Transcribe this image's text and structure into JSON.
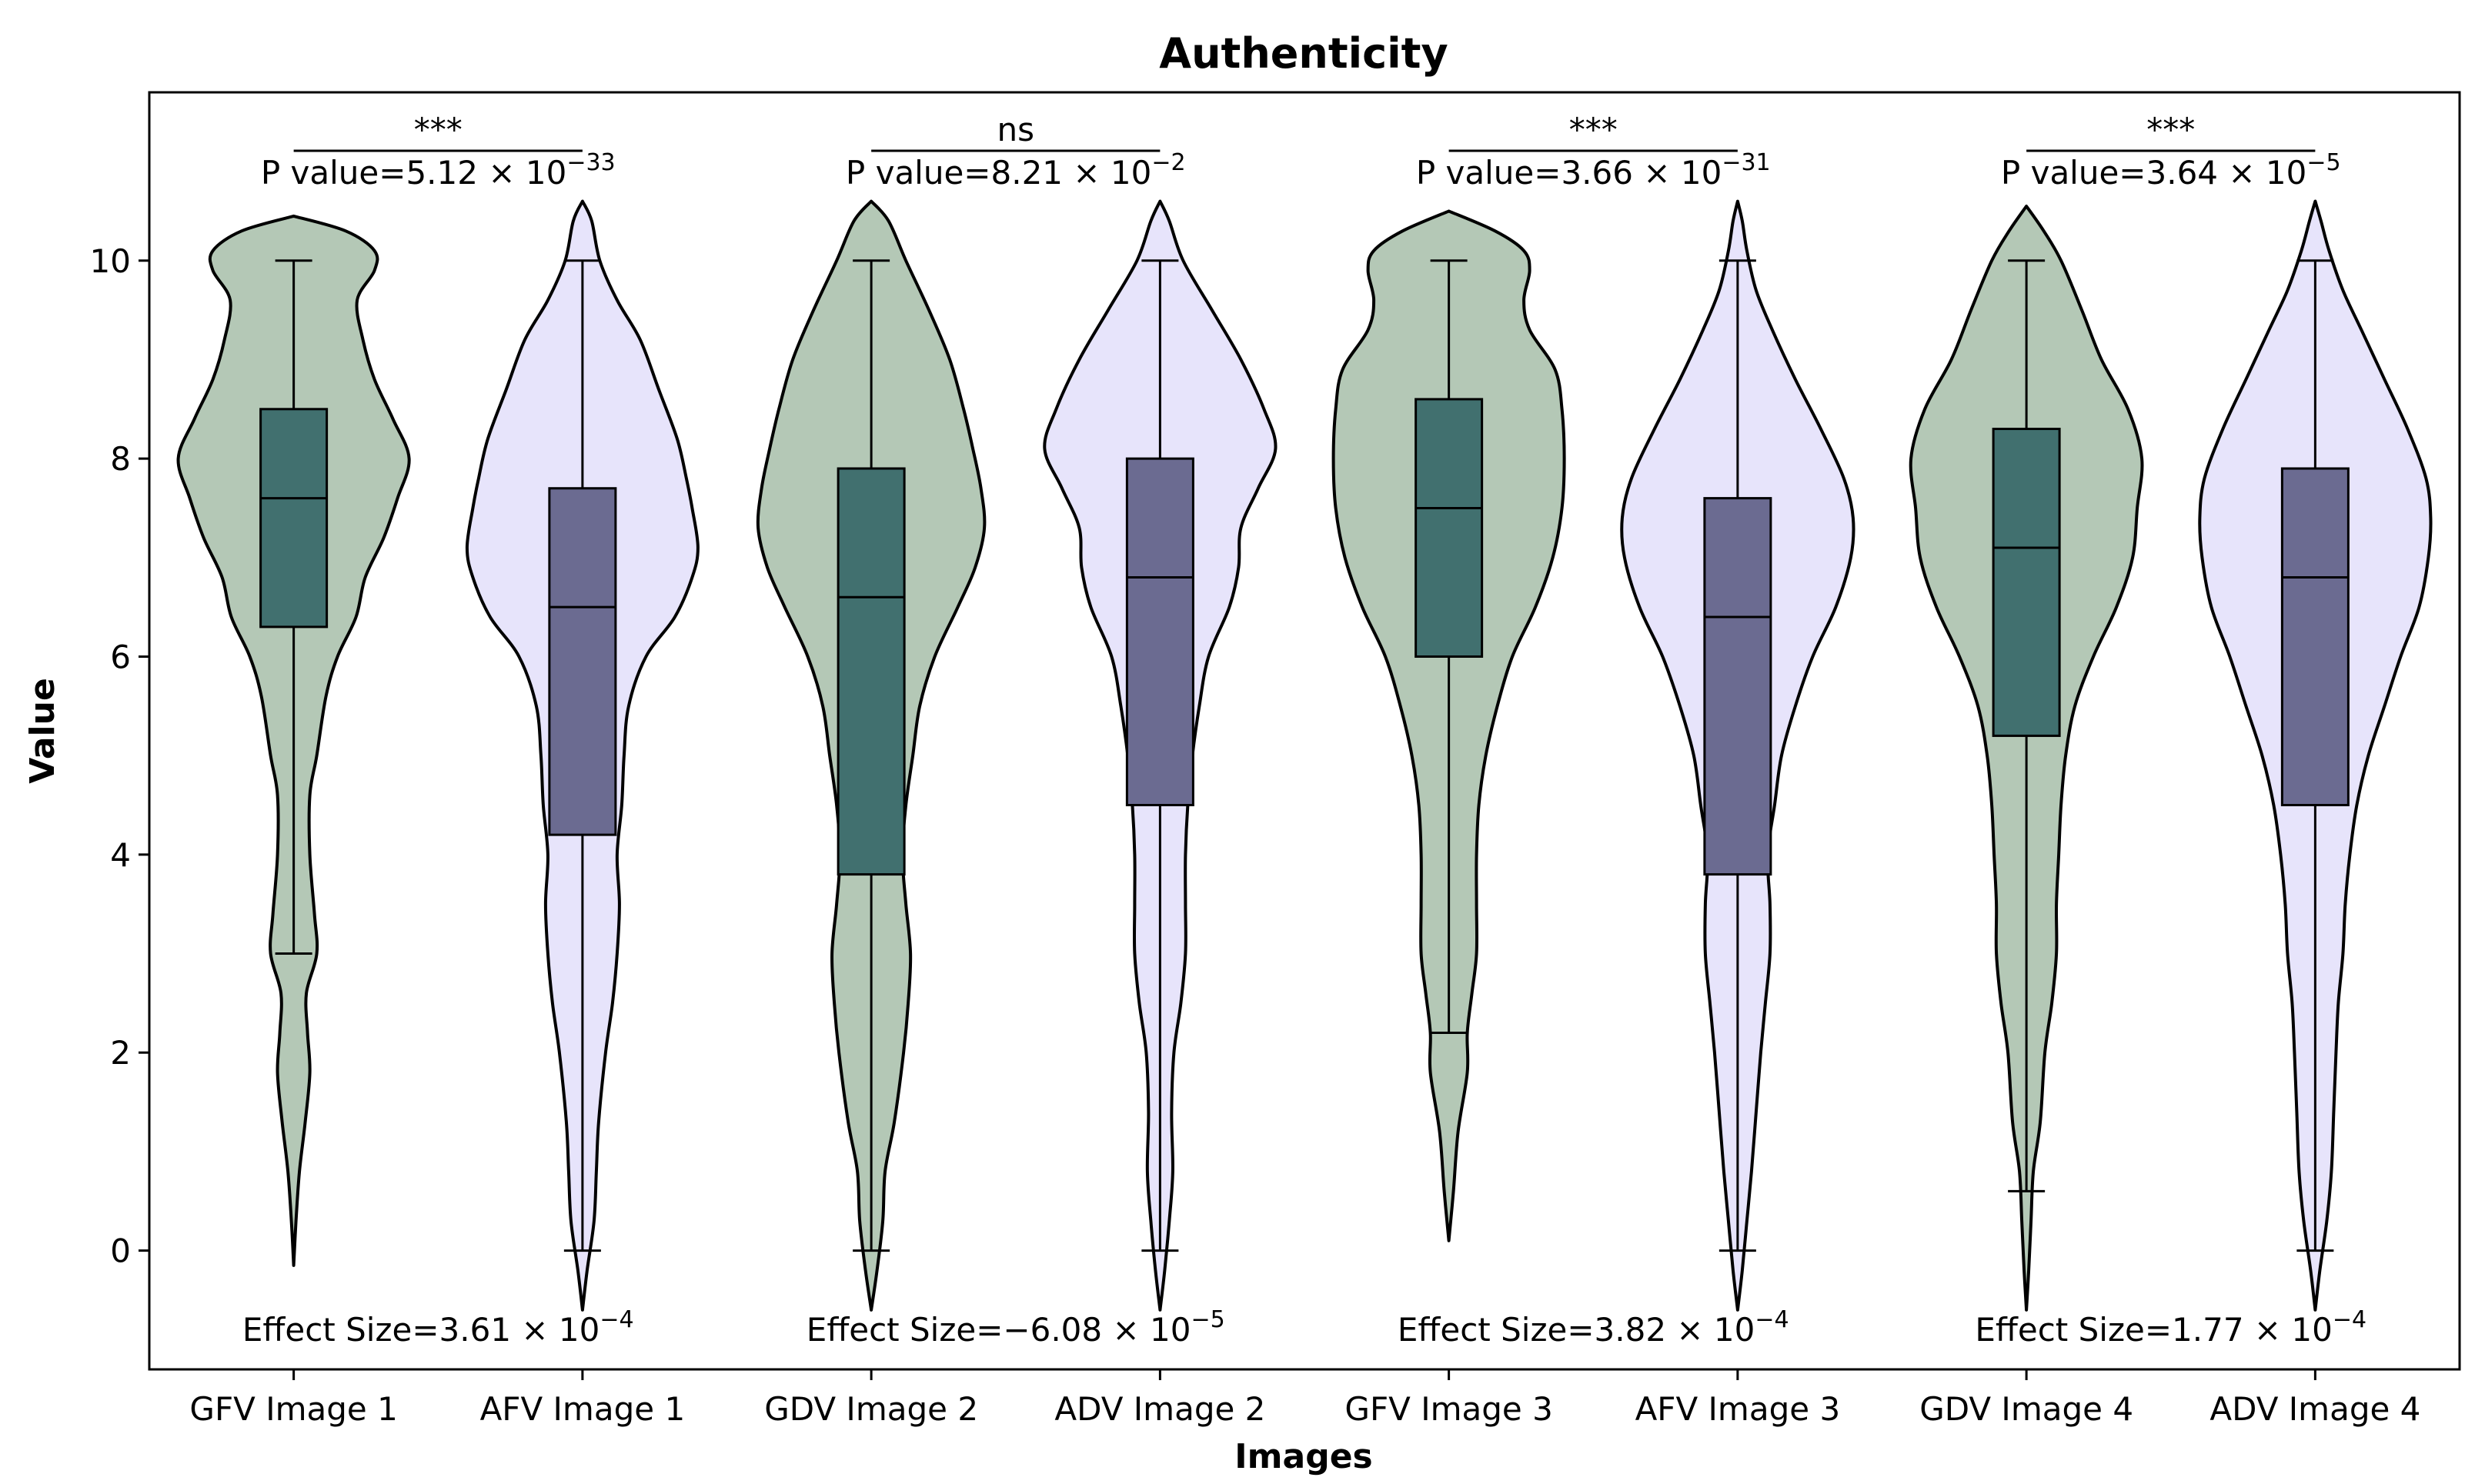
{
  "chart_data": {
    "type": "violin",
    "title": "Authenticity",
    "xlabel": "Images",
    "ylabel": "Value",
    "ylim": [
      -1.2,
      11.7
    ],
    "yticks": [
      0,
      2,
      4,
      6,
      8,
      10
    ],
    "categories": [
      "GFV Image 1",
      "AFV Image 1",
      "GDV Image 2",
      "ADV Image 2",
      "GFV Image 3",
      "AFV Image 3",
      "GDV Image 4",
      "ADV Image 4"
    ],
    "colors": {
      "violin_green": "#b4c8b6",
      "violin_lavender": "#e7e4fb",
      "box_green": "#41706f",
      "box_lavender": "#6b6b91",
      "line": "#000000"
    },
    "boxes": [
      {
        "category": "GFV Image 1",
        "whisker_low": 3.0,
        "q1": 6.3,
        "median": 7.6,
        "q3": 8.5,
        "whisker_high": 10.0,
        "color": "green"
      },
      {
        "category": "AFV Image 1",
        "whisker_low": 0.0,
        "q1": 4.2,
        "median": 6.5,
        "q3": 7.7,
        "whisker_high": 10.0,
        "color": "lavender"
      },
      {
        "category": "GDV Image 2",
        "whisker_low": 0.0,
        "q1": 3.8,
        "median": 6.6,
        "q3": 7.9,
        "whisker_high": 10.0,
        "color": "green"
      },
      {
        "category": "ADV Image 2",
        "whisker_low": 0.0,
        "q1": 4.5,
        "median": 6.8,
        "q3": 8.0,
        "whisker_high": 10.0,
        "color": "lavender"
      },
      {
        "category": "GFV Image 3",
        "whisker_low": 2.2,
        "q1": 6.0,
        "median": 7.5,
        "q3": 8.6,
        "whisker_high": 10.0,
        "color": "green"
      },
      {
        "category": "AFV Image 3",
        "whisker_low": 0.0,
        "q1": 3.8,
        "median": 6.4,
        "q3": 7.6,
        "whisker_high": 10.0,
        "color": "lavender"
      },
      {
        "category": "GDV Image 4",
        "whisker_low": 0.6,
        "q1": 5.2,
        "median": 7.1,
        "q3": 8.3,
        "whisker_high": 10.0,
        "color": "green"
      },
      {
        "category": "ADV Image 4",
        "whisker_low": 0.0,
        "q1": 4.5,
        "median": 6.8,
        "q3": 7.9,
        "whisker_high": 10.0,
        "color": "lavender"
      }
    ],
    "violins": [
      {
        "category": "GFV Image 1",
        "range": [
          -0.15,
          10.45
        ],
        "profile": [
          [
            -0.15,
            0.0
          ],
          [
            0.3,
            0.02
          ],
          [
            0.8,
            0.05
          ],
          [
            1.3,
            0.1
          ],
          [
            1.8,
            0.14
          ],
          [
            2.2,
            0.12
          ],
          [
            2.6,
            0.11
          ],
          [
            3.0,
            0.2
          ],
          [
            3.4,
            0.18
          ],
          [
            4.0,
            0.14
          ],
          [
            4.6,
            0.14
          ],
          [
            5.0,
            0.2
          ],
          [
            5.6,
            0.28
          ],
          [
            6.0,
            0.38
          ],
          [
            6.4,
            0.54
          ],
          [
            6.8,
            0.62
          ],
          [
            7.2,
            0.78
          ],
          [
            7.6,
            0.9
          ],
          [
            8.0,
            1.0
          ],
          [
            8.4,
            0.86
          ],
          [
            8.8,
            0.7
          ],
          [
            9.2,
            0.6
          ],
          [
            9.6,
            0.55
          ],
          [
            9.9,
            0.7
          ],
          [
            10.1,
            0.7
          ],
          [
            10.3,
            0.45
          ],
          [
            10.45,
            0.0
          ]
        ]
      },
      {
        "category": "AFV Image 1",
        "range": [
          -0.6,
          10.6
        ],
        "profile": [
          [
            -0.6,
            0.0
          ],
          [
            -0.2,
            0.04
          ],
          [
            0.3,
            0.1
          ],
          [
            0.8,
            0.12
          ],
          [
            1.3,
            0.14
          ],
          [
            2.0,
            0.2
          ],
          [
            2.5,
            0.26
          ],
          [
            3.0,
            0.3
          ],
          [
            3.5,
            0.32
          ],
          [
            4.0,
            0.3
          ],
          [
            4.5,
            0.34
          ],
          [
            5.0,
            0.36
          ],
          [
            5.5,
            0.4
          ],
          [
            6.0,
            0.55
          ],
          [
            6.4,
            0.8
          ],
          [
            6.8,
            0.95
          ],
          [
            7.1,
            1.0
          ],
          [
            7.5,
            0.95
          ],
          [
            7.8,
            0.9
          ],
          [
            8.2,
            0.82
          ],
          [
            8.7,
            0.66
          ],
          [
            9.2,
            0.5
          ],
          [
            9.6,
            0.3
          ],
          [
            10.0,
            0.15
          ],
          [
            10.4,
            0.08
          ],
          [
            10.6,
            0.0
          ]
        ]
      },
      {
        "category": "GDV Image 2",
        "range": [
          -0.6,
          10.6
        ],
        "profile": [
          [
            -0.6,
            0.0
          ],
          [
            -0.2,
            0.05
          ],
          [
            0.3,
            0.1
          ],
          [
            0.8,
            0.12
          ],
          [
            1.3,
            0.2
          ],
          [
            2.0,
            0.28
          ],
          [
            2.5,
            0.32
          ],
          [
            3.0,
            0.34
          ],
          [
            3.5,
            0.3
          ],
          [
            4.0,
            0.27
          ],
          [
            4.5,
            0.3
          ],
          [
            5.0,
            0.36
          ],
          [
            5.5,
            0.42
          ],
          [
            6.0,
            0.55
          ],
          [
            6.5,
            0.75
          ],
          [
            6.9,
            0.9
          ],
          [
            7.3,
            0.98
          ],
          [
            7.7,
            0.95
          ],
          [
            8.1,
            0.88
          ],
          [
            8.5,
            0.8
          ],
          [
            9.0,
            0.68
          ],
          [
            9.5,
            0.5
          ],
          [
            10.0,
            0.3
          ],
          [
            10.4,
            0.15
          ],
          [
            10.6,
            0.0
          ]
        ]
      },
      {
        "category": "ADV Image 2",
        "range": [
          -0.6,
          10.6
        ],
        "profile": [
          [
            -0.6,
            0.0
          ],
          [
            -0.2,
            0.04
          ],
          [
            0.3,
            0.08
          ],
          [
            0.8,
            0.11
          ],
          [
            1.4,
            0.1
          ],
          [
            2.0,
            0.12
          ],
          [
            2.5,
            0.18
          ],
          [
            3.0,
            0.22
          ],
          [
            3.5,
            0.22
          ],
          [
            4.0,
            0.22
          ],
          [
            4.5,
            0.24
          ],
          [
            5.0,
            0.28
          ],
          [
            5.5,
            0.34
          ],
          [
            6.0,
            0.42
          ],
          [
            6.5,
            0.6
          ],
          [
            6.9,
            0.68
          ],
          [
            7.3,
            0.7
          ],
          [
            7.7,
            0.85
          ],
          [
            8.1,
            1.0
          ],
          [
            8.5,
            0.9
          ],
          [
            9.0,
            0.7
          ],
          [
            9.5,
            0.45
          ],
          [
            10.0,
            0.2
          ],
          [
            10.4,
            0.08
          ],
          [
            10.6,
            0.0
          ]
        ]
      },
      {
        "category": "GFV Image 3",
        "range": [
          0.1,
          10.5
        ],
        "profile": [
          [
            0.1,
            0.0
          ],
          [
            0.6,
            0.04
          ],
          [
            1.2,
            0.08
          ],
          [
            1.8,
            0.16
          ],
          [
            2.2,
            0.16
          ],
          [
            2.6,
            0.2
          ],
          [
            3.0,
            0.24
          ],
          [
            3.5,
            0.24
          ],
          [
            4.0,
            0.24
          ],
          [
            4.5,
            0.26
          ],
          [
            5.0,
            0.32
          ],
          [
            5.5,
            0.42
          ],
          [
            6.0,
            0.55
          ],
          [
            6.5,
            0.75
          ],
          [
            7.0,
            0.9
          ],
          [
            7.5,
            0.98
          ],
          [
            8.0,
            1.0
          ],
          [
            8.5,
            0.98
          ],
          [
            8.9,
            0.92
          ],
          [
            9.3,
            0.7
          ],
          [
            9.6,
            0.65
          ],
          [
            9.9,
            0.7
          ],
          [
            10.1,
            0.65
          ],
          [
            10.3,
            0.4
          ],
          [
            10.5,
            0.0
          ]
        ]
      },
      {
        "category": "AFV Image 3",
        "range": [
          -0.6,
          10.6
        ],
        "profile": [
          [
            -0.6,
            0.0
          ],
          [
            -0.2,
            0.04
          ],
          [
            0.3,
            0.08
          ],
          [
            0.8,
            0.12
          ],
          [
            1.4,
            0.16
          ],
          [
            2.0,
            0.2
          ],
          [
            2.5,
            0.24
          ],
          [
            3.0,
            0.28
          ],
          [
            3.5,
            0.28
          ],
          [
            4.0,
            0.26
          ],
          [
            4.5,
            0.32
          ],
          [
            5.0,
            0.38
          ],
          [
            5.5,
            0.5
          ],
          [
            6.0,
            0.65
          ],
          [
            6.5,
            0.85
          ],
          [
            7.0,
            0.98
          ],
          [
            7.4,
            1.0
          ],
          [
            7.8,
            0.92
          ],
          [
            8.3,
            0.72
          ],
          [
            8.8,
            0.5
          ],
          [
            9.3,
            0.3
          ],
          [
            9.7,
            0.16
          ],
          [
            10.1,
            0.08
          ],
          [
            10.4,
            0.04
          ],
          [
            10.6,
            0.0
          ]
        ]
      },
      {
        "category": "GDV Image 4",
        "range": [
          -0.6,
          10.55
        ],
        "profile": [
          [
            -0.6,
            0.0
          ],
          [
            -0.2,
            0.02
          ],
          [
            0.3,
            0.04
          ],
          [
            0.8,
            0.06
          ],
          [
            1.3,
            0.12
          ],
          [
            2.0,
            0.16
          ],
          [
            2.5,
            0.22
          ],
          [
            3.0,
            0.26
          ],
          [
            3.5,
            0.26
          ],
          [
            4.0,
            0.28
          ],
          [
            4.5,
            0.3
          ],
          [
            5.0,
            0.34
          ],
          [
            5.5,
            0.42
          ],
          [
            6.0,
            0.58
          ],
          [
            6.5,
            0.78
          ],
          [
            7.0,
            0.92
          ],
          [
            7.5,
            0.96
          ],
          [
            8.0,
            1.0
          ],
          [
            8.5,
            0.88
          ],
          [
            9.0,
            0.65
          ],
          [
            9.5,
            0.48
          ],
          [
            10.0,
            0.3
          ],
          [
            10.3,
            0.15
          ],
          [
            10.55,
            0.0
          ]
        ]
      },
      {
        "category": "ADV Image 4",
        "range": [
          -0.6,
          10.6
        ],
        "profile": [
          [
            -0.6,
            0.0
          ],
          [
            -0.2,
            0.04
          ],
          [
            0.3,
            0.1
          ],
          [
            0.8,
            0.14
          ],
          [
            1.4,
            0.16
          ],
          [
            2.0,
            0.18
          ],
          [
            2.5,
            0.2
          ],
          [
            3.0,
            0.24
          ],
          [
            3.5,
            0.26
          ],
          [
            4.0,
            0.3
          ],
          [
            4.5,
            0.36
          ],
          [
            5.0,
            0.46
          ],
          [
            5.5,
            0.6
          ],
          [
            6.0,
            0.74
          ],
          [
            6.5,
            0.9
          ],
          [
            7.0,
            0.98
          ],
          [
            7.4,
            1.0
          ],
          [
            7.8,
            0.96
          ],
          [
            8.3,
            0.8
          ],
          [
            8.8,
            0.6
          ],
          [
            9.3,
            0.4
          ],
          [
            9.7,
            0.24
          ],
          [
            10.1,
            0.12
          ],
          [
            10.4,
            0.05
          ],
          [
            10.6,
            0.0
          ]
        ]
      }
    ],
    "comparisons": [
      {
        "pair": [
          "GFV Image 1",
          "AFV Image 1"
        ],
        "significance": "***",
        "p_value_label": "P value=5.12",
        "p_exponent": "−33",
        "effect_size_label": "Effect Size=3.61",
        "effect_exponent": "−4"
      },
      {
        "pair": [
          "GDV Image 2",
          "ADV Image 2"
        ],
        "significance": "ns",
        "p_value_label": "P value=8.21",
        "p_exponent": "−2",
        "effect_size_label": "Effect Size=−6.08",
        "effect_exponent": "−5"
      },
      {
        "pair": [
          "GFV Image 3",
          "AFV Image 3"
        ],
        "significance": "***",
        "p_value_label": "P value=3.66",
        "p_exponent": "−31",
        "effect_size_label": "Effect Size=3.82",
        "effect_exponent": "−4"
      },
      {
        "pair": [
          "GDV Image 4",
          "ADV Image 4"
        ],
        "significance": "***",
        "p_value_label": "P value=3.64",
        "p_exponent": "−5",
        "effect_size_label": "Effect Size=1.77",
        "effect_exponent": "−4"
      }
    ],
    "times_symbol": "×",
    "exponent_base": "10"
  }
}
